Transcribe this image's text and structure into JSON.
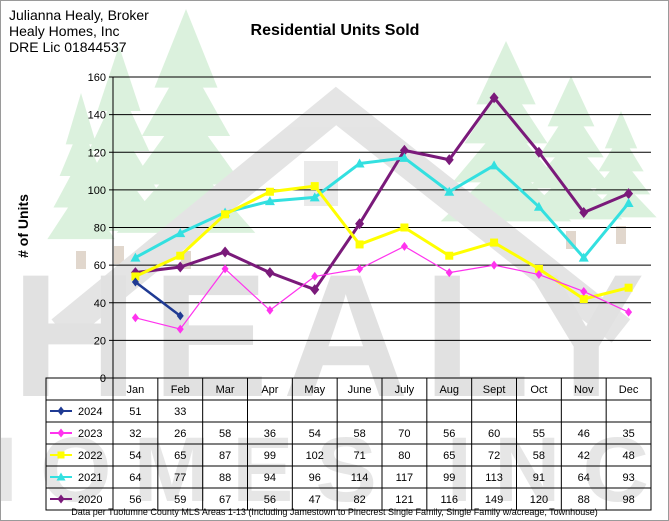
{
  "broker": {
    "name": "Julianna Healy, Broker",
    "company": "Healy Homes, Inc",
    "license": "DRE Lic 01844537"
  },
  "watermark": {
    "brand": "HEALY",
    "sub": "HOMES INC."
  },
  "footnote": "Data per Tuolumne County MLS Areas 1-13 (Including Jamestown to Pinecrest Single Family, Single Family w/acreage, Townhouse)",
  "chart_data": {
    "type": "line",
    "title": "Residential Units Sold",
    "xlabel": "",
    "ylabel": "# of Units",
    "ylim": [
      0,
      160
    ],
    "yticks": [
      0,
      20,
      40,
      60,
      80,
      100,
      120,
      140,
      160
    ],
    "grid": true,
    "legend": "data table below chart",
    "categories": [
      "Jan",
      "Feb",
      "Mar",
      "Apr",
      "May",
      "June",
      "July",
      "Aug",
      "Sept",
      "Oct",
      "Nov",
      "Dec"
    ],
    "series": [
      {
        "name": "2024",
        "color": "#1f3a93",
        "marker": "diamond",
        "values": [
          51,
          33,
          null,
          null,
          null,
          null,
          null,
          null,
          null,
          null,
          null,
          null
        ]
      },
      {
        "name": "2023",
        "color": "#ff33ee",
        "marker": "diamond",
        "values": [
          32,
          26,
          58,
          36,
          54,
          58,
          70,
          56,
          60,
          55,
          46,
          35
        ]
      },
      {
        "name": "2022",
        "color": "#ffff00",
        "marker": "square",
        "values": [
          54,
          65,
          87,
          99,
          102,
          71,
          80,
          65,
          72,
          58,
          42,
          48
        ]
      },
      {
        "name": "2021",
        "color": "#33e0e0",
        "marker": "triangle",
        "values": [
          64,
          77,
          88,
          94,
          96,
          114,
          117,
          99,
          113,
          91,
          64,
          93
        ]
      },
      {
        "name": "2020",
        "color": "#7a1a7a",
        "marker": "diamond",
        "values": [
          56,
          59,
          67,
          56,
          47,
          82,
          121,
          116,
          149,
          120,
          88,
          98
        ]
      }
    ]
  }
}
